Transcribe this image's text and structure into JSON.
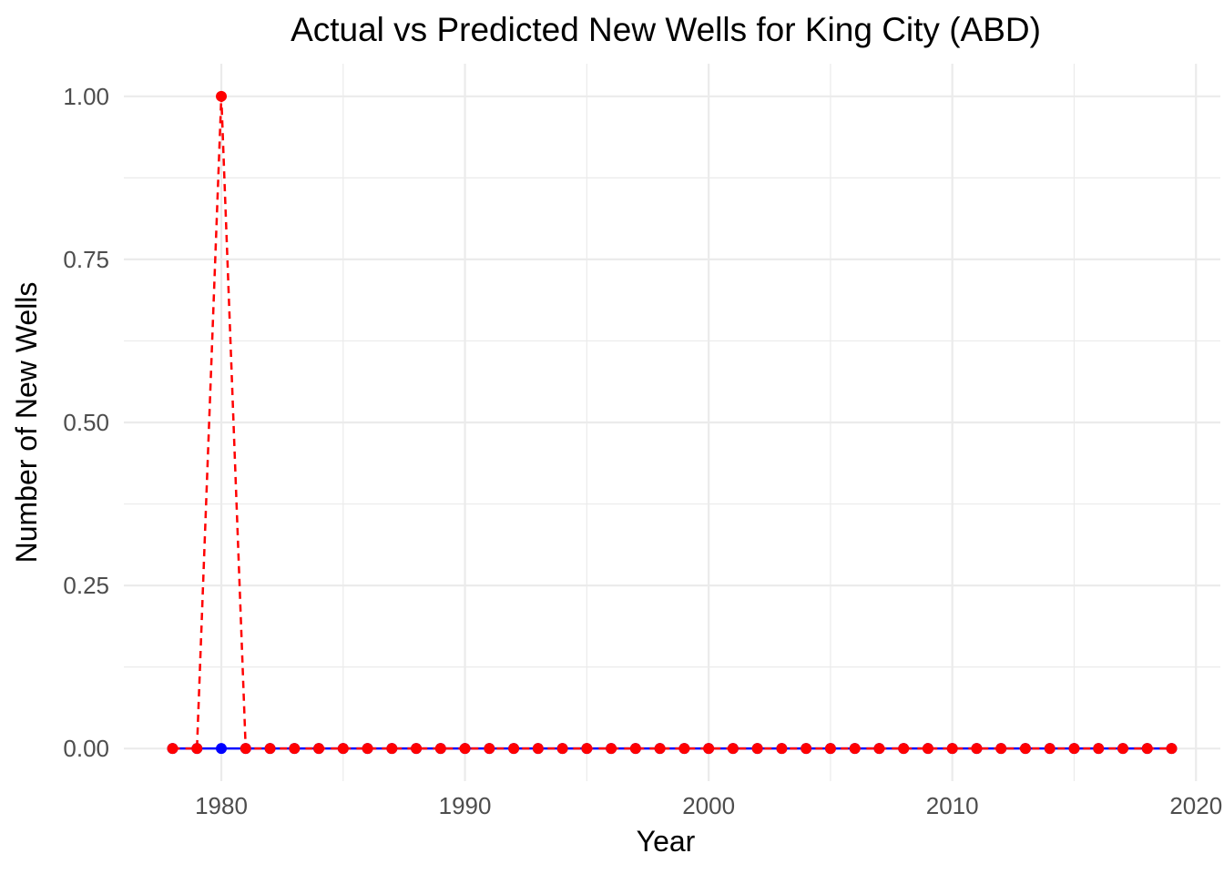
{
  "chart_data": {
    "type": "line",
    "title": "Actual vs Predicted New Wells for King City (ABD)",
    "xlabel": "Year",
    "ylabel": "Number of New Wells",
    "xlim": [
      1976,
      2021
    ],
    "ylim": [
      -0.05,
      1.05
    ],
    "x_ticks": [
      1980,
      1990,
      2000,
      2010,
      2020
    ],
    "x_tick_labels": [
      "1980",
      "1990",
      "2000",
      "2010",
      "2020"
    ],
    "y_ticks": [
      0,
      0.25,
      0.5,
      0.75,
      1.0
    ],
    "y_tick_labels": [
      "0.00",
      "0.25",
      "0.50",
      "0.75",
      "1.00"
    ],
    "x_minor_ticks": [
      1985,
      1995,
      2005,
      2015
    ],
    "y_minor_ticks": [
      0.125,
      0.375,
      0.625,
      0.875
    ],
    "grid": true,
    "legend": "none",
    "x": [
      1978,
      1979,
      1980,
      1981,
      1982,
      1983,
      1984,
      1985,
      1986,
      1987,
      1988,
      1989,
      1990,
      1991,
      1992,
      1993,
      1994,
      1995,
      1996,
      1997,
      1998,
      1999,
      2000,
      2001,
      2002,
      2003,
      2004,
      2005,
      2006,
      2007,
      2008,
      2009,
      2010,
      2011,
      2012,
      2013,
      2014,
      2015,
      2016,
      2017,
      2018,
      2019
    ],
    "series": [
      {
        "color": "#0000ff",
        "line_style": "solid",
        "values": [
          0,
          0,
          0,
          0,
          0,
          0,
          0,
          0,
          0,
          0,
          0,
          0,
          0,
          0,
          0,
          0,
          0,
          0,
          0,
          0,
          0,
          0,
          0,
          0,
          0,
          0,
          0,
          0,
          0,
          0,
          0,
          0,
          0,
          0,
          0,
          0,
          0,
          0,
          0,
          0,
          0,
          0
        ]
      },
      {
        "color": "#ff0000",
        "line_style": "dashed",
        "values": [
          0,
          0,
          1,
          0,
          0,
          0,
          0,
          0,
          0,
          0,
          0,
          0,
          0,
          0,
          0,
          0,
          0,
          0,
          0,
          0,
          0,
          0,
          0,
          0,
          0,
          0,
          0,
          0,
          0,
          0,
          0,
          0,
          0,
          0,
          0,
          0,
          0,
          0,
          0,
          0,
          0,
          0
        ]
      }
    ]
  }
}
